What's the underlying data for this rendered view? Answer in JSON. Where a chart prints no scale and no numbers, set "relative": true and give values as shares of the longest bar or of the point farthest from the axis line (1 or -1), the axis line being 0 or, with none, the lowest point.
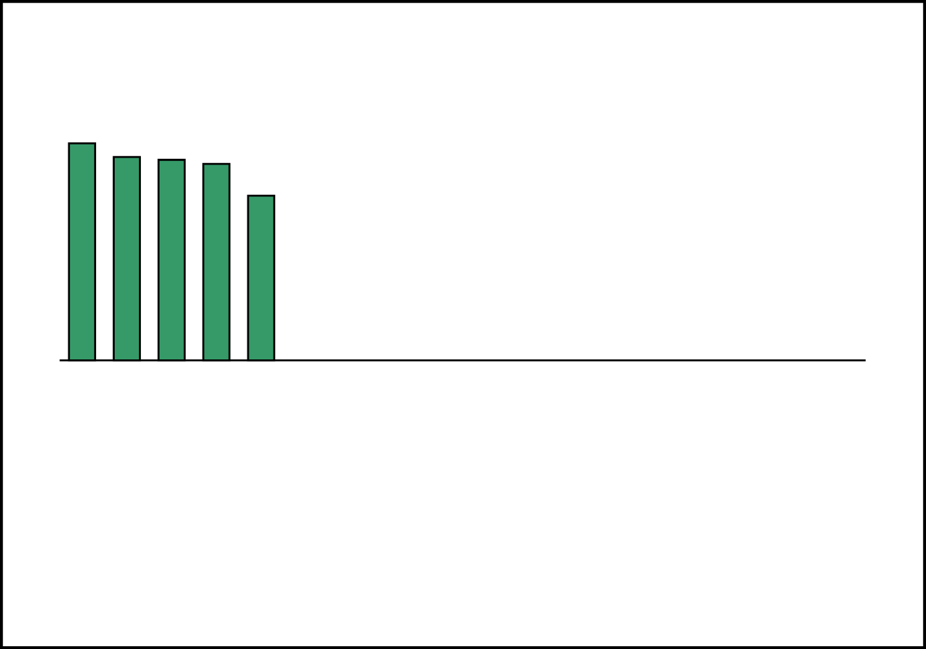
{
  "chart_data": {
    "type": "bar",
    "relative": true,
    "categories": [
      null,
      null,
      null,
      null,
      null
    ],
    "values": [
      1,
      0.937,
      0.924,
      0.905,
      0.759
    ],
    "color": "#359a68"
  }
}
